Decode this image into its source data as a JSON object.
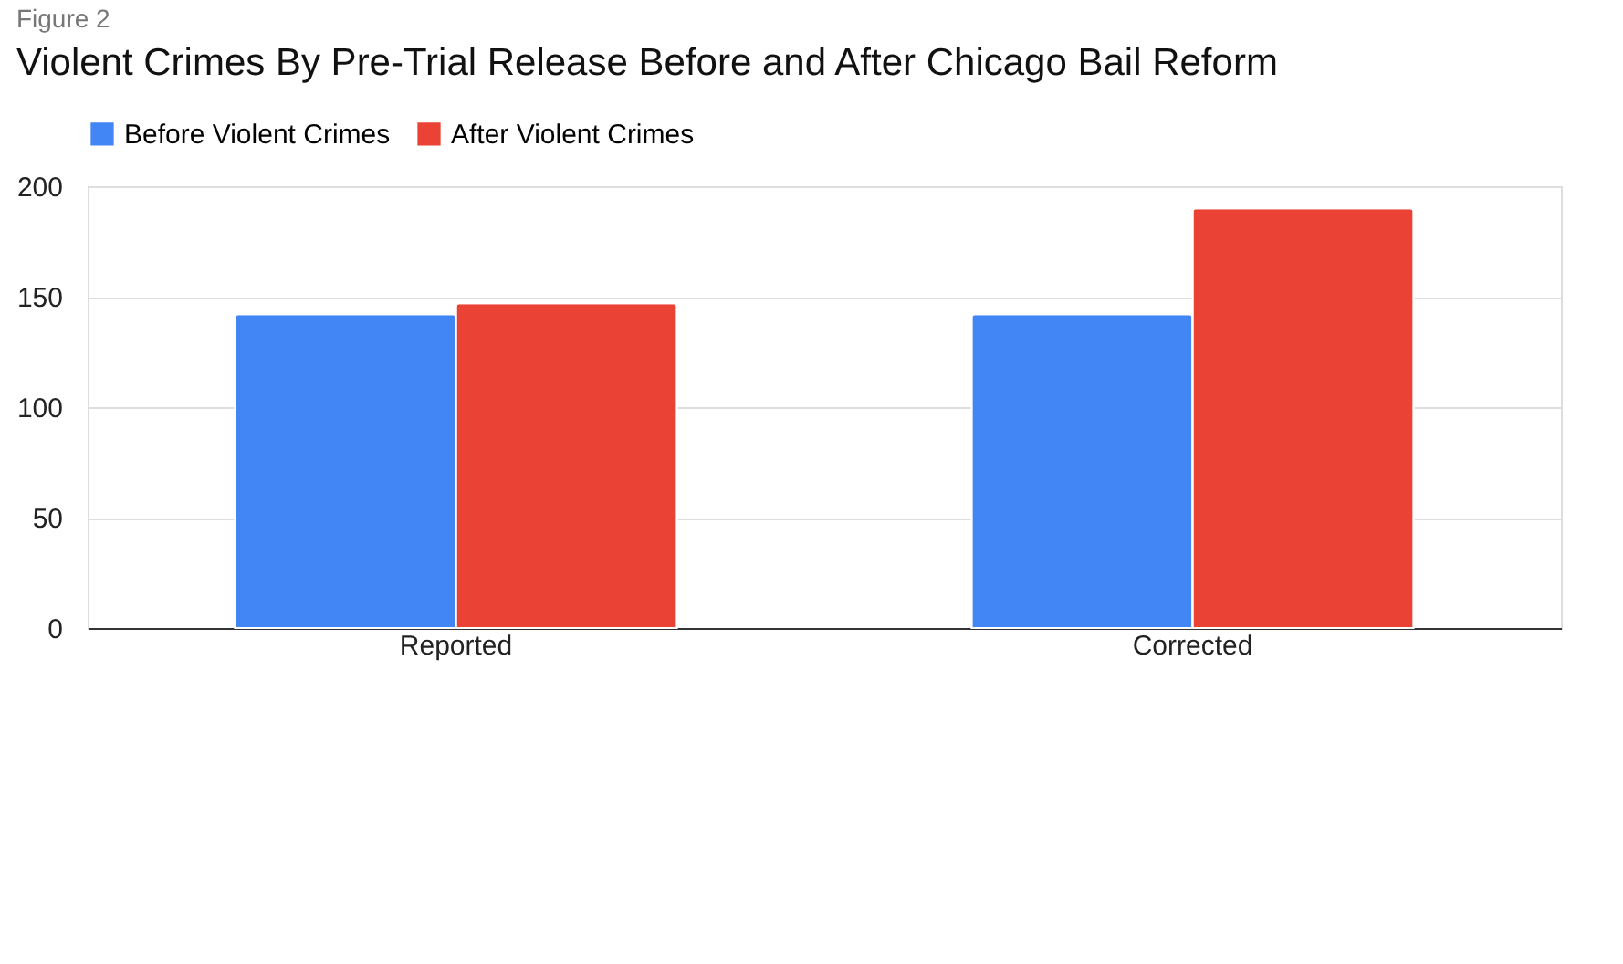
{
  "chart_data": {
    "type": "bar",
    "title": "Violent Crimes By Pre-Trial Release Before and After Chicago Bail Reform",
    "annotations": [
      "Figure 2"
    ],
    "categories": [
      "Reported",
      "Corrected"
    ],
    "series": [
      {
        "name": "Before Violent Crimes",
        "color": "#4285f4",
        "values": [
          142,
          142
        ]
      },
      {
        "name": "After Violent Crimes",
        "color": "#ea4335",
        "values": [
          147,
          190
        ]
      }
    ],
    "ylim": [
      0,
      200
    ],
    "yticks": [
      0,
      50,
      100,
      150,
      200
    ],
    "grid": "y",
    "legend": "top"
  }
}
